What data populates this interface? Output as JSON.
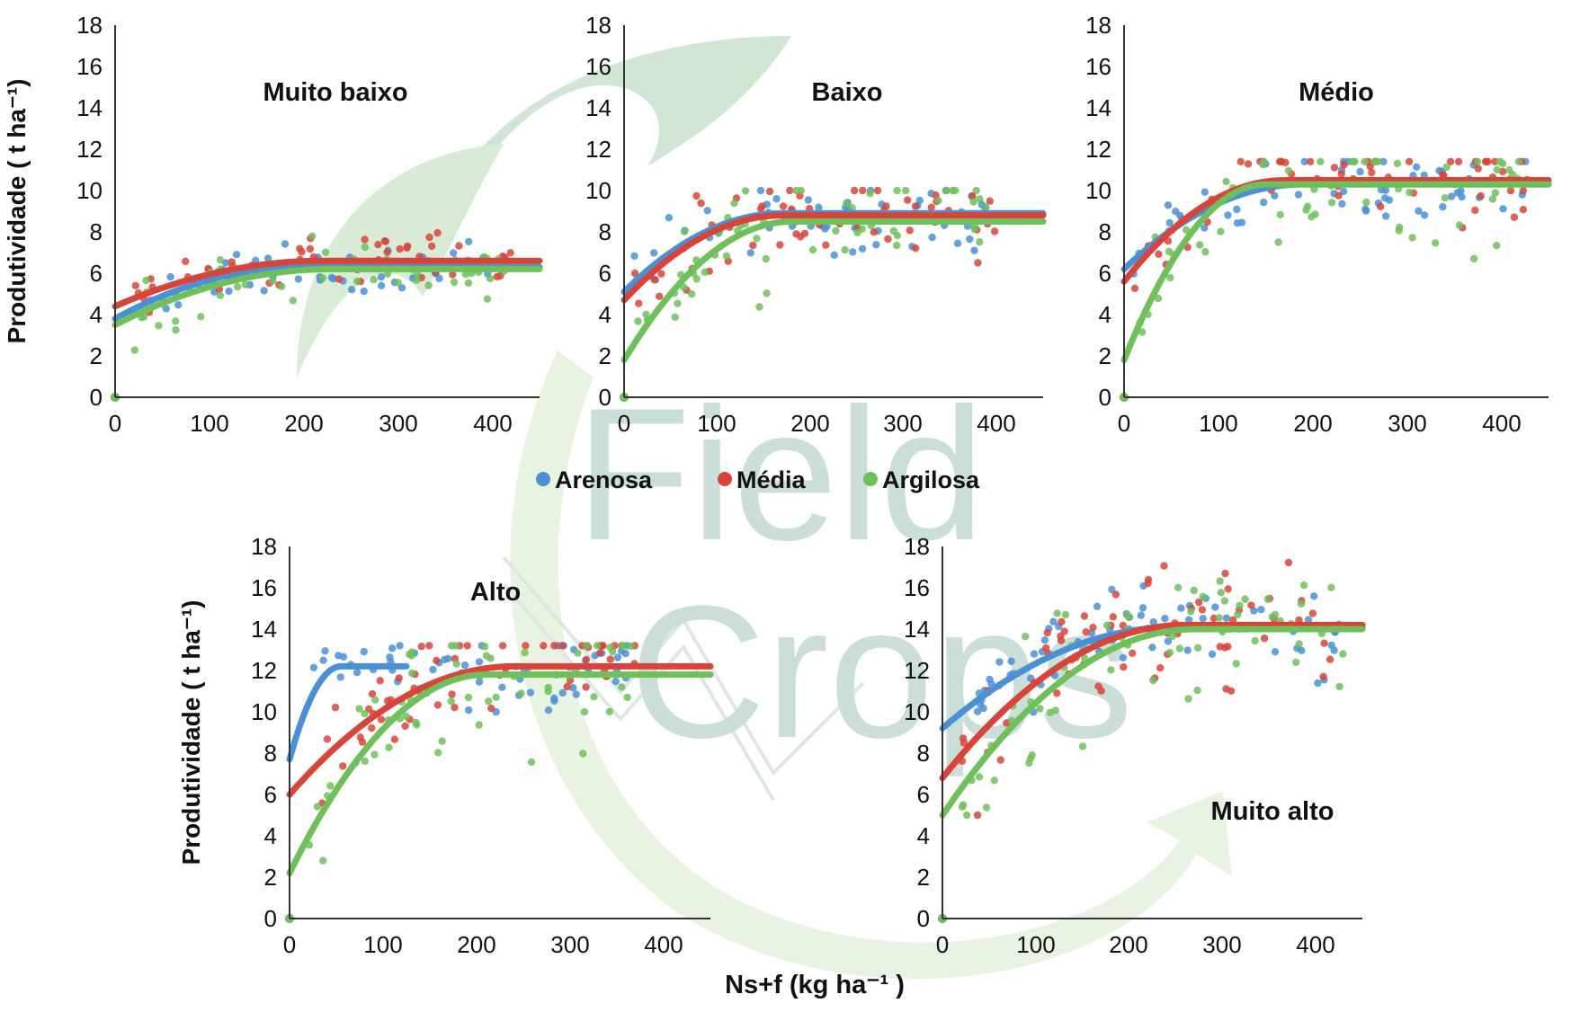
{
  "watermark": {
    "lines": [
      "Field",
      "Crops"
    ],
    "color_green": "#9cc98f",
    "color_teal": "#5f9a8e"
  },
  "chart_data": {
    "type": "scatter",
    "ylabel": "Produtividade ( t  ha⁻¹)",
    "xlabel": "Ns+f (kg ha⁻¹ )",
    "xlim": [
      0,
      450
    ],
    "ylim": [
      0,
      18
    ],
    "xticks": [
      "0",
      "100",
      "200",
      "300",
      "400"
    ],
    "yticks": [
      "0",
      "2",
      "4",
      "6",
      "8",
      "10",
      "12",
      "14",
      "16",
      "18"
    ],
    "grid": false,
    "legend": {
      "placement": "top-center",
      "entries": [
        {
          "name": "Arenosa",
          "color": "#4a90d6"
        },
        {
          "name": "Média",
          "color": "#d9443a"
        },
        {
          "name": "Argilosa",
          "color": "#6fbf5a"
        }
      ]
    },
    "panels": [
      {
        "title": "Muito baixo",
        "fits": [
          {
            "series": "Arenosa",
            "y0": 3.8,
            "plateau": 6.3,
            "x_plateau": 200,
            "x_end": 450
          },
          {
            "series": "Média",
            "y0": 4.4,
            "plateau": 6.6,
            "x_plateau": 220,
            "x_end": 450
          },
          {
            "series": "Argilosa",
            "y0": 3.5,
            "plateau": 6.2,
            "x_plateau": 230,
            "x_end": 450
          }
        ],
        "scatter": {
          "x_range": [
            20,
            420
          ],
          "y_range": [
            1.5,
            8.3
          ],
          "n_per_series": 60
        }
      },
      {
        "title": "Baixo",
        "fits": [
          {
            "series": "Arenosa",
            "y0": 5.1,
            "plateau": 8.9,
            "x_plateau": 170,
            "x_end": 450
          },
          {
            "series": "Média",
            "y0": 4.7,
            "plateau": 8.8,
            "x_plateau": 170,
            "x_end": 450
          },
          {
            "series": "Argilosa",
            "y0": 1.8,
            "plateau": 8.5,
            "x_plateau": 180,
            "x_end": 450
          }
        ],
        "scatter": {
          "x_range": [
            10,
            400
          ],
          "y_range": [
            2.5,
            10.0
          ],
          "n_per_series": 60
        }
      },
      {
        "title": "Médio",
        "fits": [
          {
            "series": "Arenosa",
            "y0": 6.2,
            "plateau": 10.3,
            "x_plateau": 190,
            "x_end": 450
          },
          {
            "series": "Média",
            "y0": 5.6,
            "plateau": 10.5,
            "x_plateau": 170,
            "x_end": 450
          },
          {
            "series": "Argilosa",
            "y0": 1.8,
            "plateau": 10.3,
            "x_plateau": 150,
            "x_end": 450
          }
        ],
        "scatter": {
          "x_range": [
            10,
            430
          ],
          "y_range": [
            2.2,
            11.4
          ],
          "n_per_series": 60
        }
      },
      {
        "title": "Alto",
        "fits": [
          {
            "series": "Arenosa",
            "y0": 7.7,
            "plateau": 12.2,
            "x_plateau": 55,
            "x_end": 125
          },
          {
            "series": "Média",
            "y0": 6.0,
            "plateau": 12.2,
            "x_plateau": 240,
            "x_end": 450
          },
          {
            "series": "Argilosa",
            "y0": 2.2,
            "plateau": 11.8,
            "x_plateau": 210,
            "x_end": 450
          }
        ],
        "scatter": {
          "x_range": [
            20,
            370
          ],
          "y_range": [
            2.8,
            13.2
          ],
          "n_per_series": 60
        }
      },
      {
        "title": "Muito alto",
        "fits": [
          {
            "series": "Arenosa",
            "y0": 9.2,
            "plateau": 14.1,
            "x_plateau": 250,
            "x_end": 450
          },
          {
            "series": "Média",
            "y0": 6.8,
            "plateau": 14.2,
            "x_plateau": 260,
            "x_end": 450
          },
          {
            "series": "Argilosa",
            "y0": 5.0,
            "plateau": 14.0,
            "x_plateau": 270,
            "x_end": 450
          }
        ],
        "scatter": {
          "x_range": [
            20,
            430
          ],
          "y_range": [
            5.0,
            17.8
          ],
          "n_per_series": 70
        }
      }
    ]
  }
}
